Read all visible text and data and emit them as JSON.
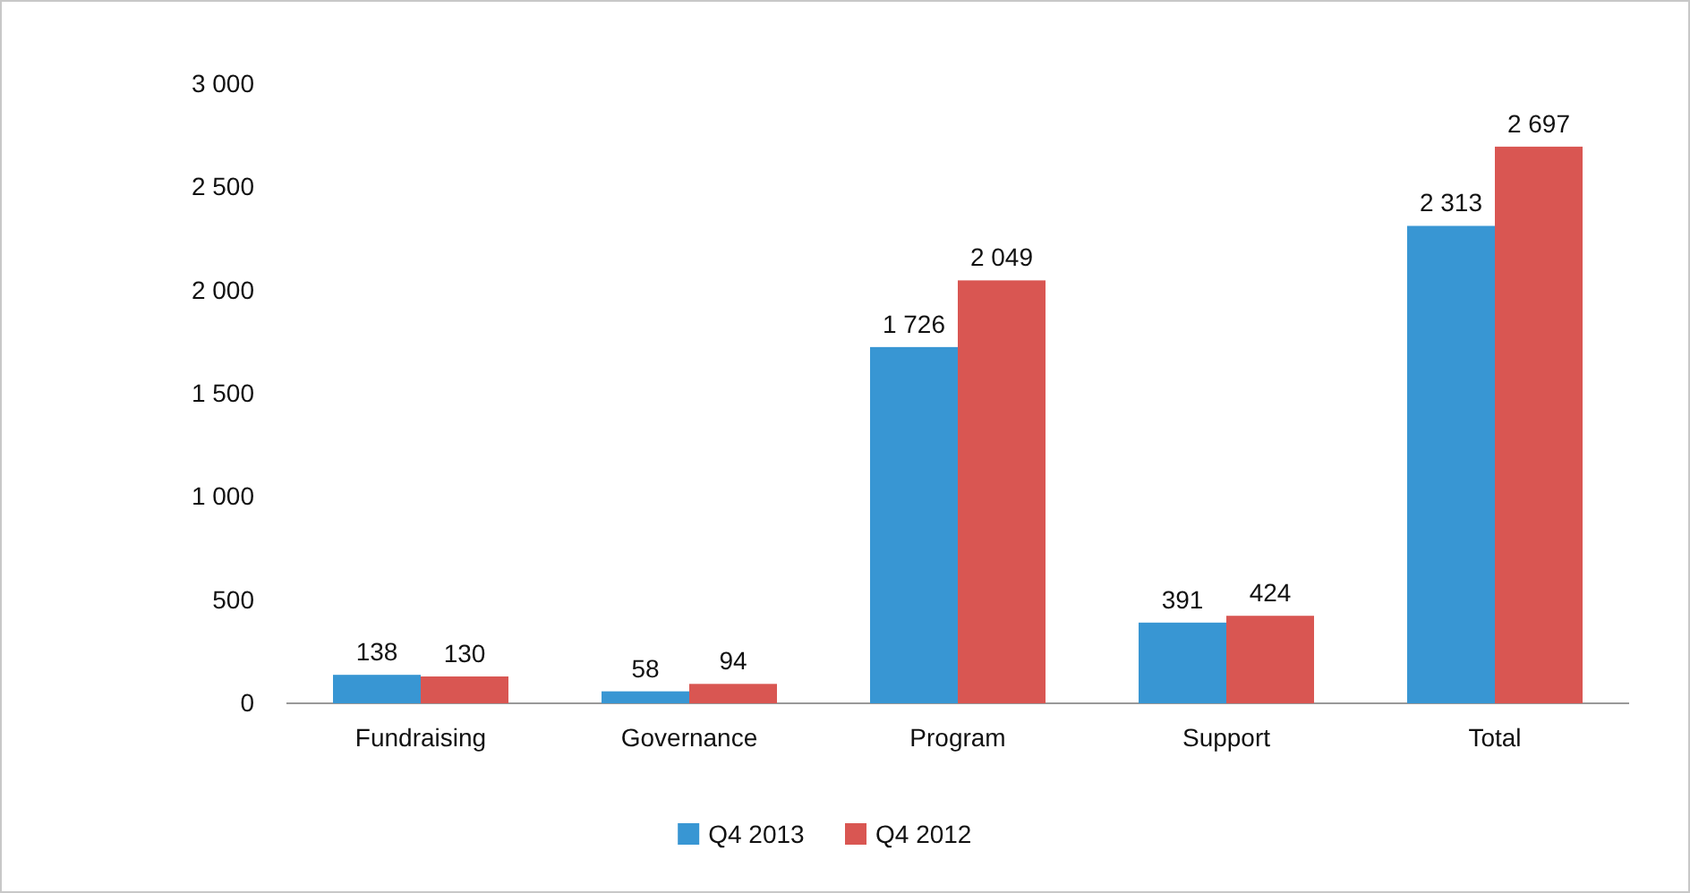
{
  "chart_data": {
    "type": "bar",
    "categories": [
      "Fundraising",
      "Governance",
      "Program",
      "Support",
      "Total"
    ],
    "series": [
      {
        "name": "Q4 2013",
        "color": "#3896d3",
        "values": [
          138,
          58,
          1726,
          391,
          2313
        ],
        "value_labels": [
          "138",
          "58",
          "1 726",
          "391",
          "2 313"
        ]
      },
      {
        "name": "Q4 2012",
        "color": "#d95652",
        "values": [
          130,
          94,
          2049,
          424,
          2697
        ],
        "value_labels": [
          "130",
          "94",
          "2 049",
          "424",
          "2 697"
        ]
      }
    ],
    "ylim": [
      0,
      3000
    ],
    "yticks": [
      0,
      500,
      {
        "value": 1000,
        "label": "1 000"
      },
      {
        "value": 1500,
        "label": "1 500"
      },
      {
        "value": 2000,
        "label": "2 000"
      },
      {
        "value": 2500,
        "label": "2 500"
      },
      {
        "value": 3000,
        "label": "3 000"
      }
    ],
    "grid": false,
    "legend": "bottom"
  }
}
